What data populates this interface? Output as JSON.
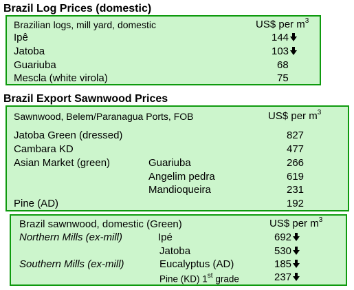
{
  "log": {
    "title": "Brazil Log Prices (domestic)",
    "header_label": "Brazilian logs, mill yard, domestic",
    "unit_prefix": "US$ per m",
    "unit_sup": "3",
    "rows": [
      {
        "name": "Ipê",
        "value": "144"
      },
      {
        "name": "Jatoba",
        "value": "103"
      },
      {
        "name": "Guariuba",
        "value": "68"
      },
      {
        "name": "Mescla (white virola)",
        "value": "75"
      }
    ]
  },
  "export": {
    "title": "Brazil Export Sawnwood Prices",
    "header_label": "Sawnwood, Belem/Paranagua Ports, FOB",
    "unit_prefix": "US$ per m",
    "unit_sup": "3",
    "rows": [
      {
        "name": "Jatoba Green (dressed)",
        "species": "",
        "value": "827"
      },
      {
        "name": "Cambara KD",
        "species": "",
        "value": "477"
      },
      {
        "name": "Asian Market (green)",
        "species": "Guariuba",
        "value": "266"
      },
      {
        "name": "",
        "species": "Angelim pedra",
        "value": "619"
      },
      {
        "name": "",
        "species": "Mandioqueira",
        "value": "231"
      },
      {
        "name": "Pine (AD)",
        "species": "",
        "value": "192"
      }
    ]
  },
  "domestic": {
    "header_label": "Brazil sawnwood, domestic (Green)",
    "unit_prefix": "US$ per m",
    "unit_sup": "3",
    "rows": [
      {
        "region": "Northern Mills (ex-mill)",
        "species": "Ipé",
        "value": "692"
      },
      {
        "region": "",
        "species": "Jatoba",
        "value": "530"
      },
      {
        "region": "Southern Mills (ex-mill)",
        "species": "Eucalyptus (AD)",
        "value": "185"
      },
      {
        "region": "",
        "species_a": "Pine (KD) 1",
        "species_sup": "st",
        "species_b": " grade",
        "value": "237"
      }
    ]
  },
  "colors": {
    "box_fill": "#ccf5cc",
    "box_border": "#0e9a0e"
  },
  "icons": {
    "trend": "down-arrow-icon"
  }
}
